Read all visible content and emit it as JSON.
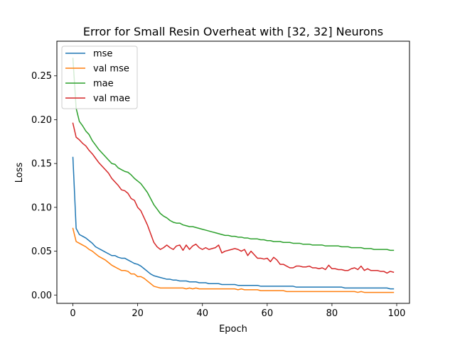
{
  "chart_data": {
    "type": "line",
    "title": "Error for Small Resin Overheat with [32, 32] Neurons",
    "xlabel": "Epoch",
    "ylabel": "Loss",
    "xlim": [
      -4.95,
      103.95
    ],
    "ylim": [
      -0.0095,
      0.2895
    ],
    "xticks": [
      0,
      20,
      40,
      60,
      80,
      100
    ],
    "yticks": [
      0.0,
      0.05,
      0.1,
      0.15,
      0.2,
      0.25
    ],
    "legend_position": "top-left",
    "grid": false,
    "series": [
      {
        "name": "mse",
        "color": "#1f77b4",
        "values": [
          0.157,
          0.076,
          0.069,
          0.067,
          0.065,
          0.062,
          0.059,
          0.055,
          0.053,
          0.051,
          0.049,
          0.047,
          0.045,
          0.045,
          0.043,
          0.042,
          0.042,
          0.04,
          0.038,
          0.036,
          0.035,
          0.033,
          0.03,
          0.027,
          0.024,
          0.022,
          0.021,
          0.02,
          0.019,
          0.018,
          0.018,
          0.017,
          0.017,
          0.016,
          0.016,
          0.016,
          0.015,
          0.015,
          0.015,
          0.014,
          0.014,
          0.014,
          0.013,
          0.013,
          0.013,
          0.013,
          0.012,
          0.012,
          0.012,
          0.012,
          0.012,
          0.011,
          0.011,
          0.011,
          0.011,
          0.011,
          0.011,
          0.011,
          0.01,
          0.01,
          0.01,
          0.01,
          0.01,
          0.01,
          0.01,
          0.01,
          0.01,
          0.01,
          0.01,
          0.009,
          0.009,
          0.009,
          0.009,
          0.009,
          0.009,
          0.009,
          0.009,
          0.009,
          0.009,
          0.009,
          0.009,
          0.009,
          0.009,
          0.009,
          0.008,
          0.008,
          0.008,
          0.008,
          0.008,
          0.008,
          0.008,
          0.008,
          0.008,
          0.008,
          0.008,
          0.008,
          0.008,
          0.008,
          0.007,
          0.007
        ]
      },
      {
        "name": "val mse",
        "color": "#ff7f0e",
        "values": [
          0.076,
          0.061,
          0.059,
          0.057,
          0.055,
          0.052,
          0.05,
          0.047,
          0.044,
          0.042,
          0.04,
          0.037,
          0.034,
          0.032,
          0.03,
          0.028,
          0.028,
          0.027,
          0.024,
          0.024,
          0.021,
          0.021,
          0.019,
          0.016,
          0.013,
          0.01,
          0.009,
          0.008,
          0.008,
          0.008,
          0.008,
          0.008,
          0.008,
          0.008,
          0.008,
          0.007,
          0.008,
          0.007,
          0.008,
          0.007,
          0.007,
          0.007,
          0.007,
          0.007,
          0.007,
          0.007,
          0.007,
          0.007,
          0.007,
          0.007,
          0.007,
          0.006,
          0.007,
          0.006,
          0.006,
          0.006,
          0.006,
          0.006,
          0.005,
          0.005,
          0.005,
          0.005,
          0.005,
          0.005,
          0.005,
          0.005,
          0.004,
          0.004,
          0.004,
          0.004,
          0.004,
          0.004,
          0.004,
          0.004,
          0.004,
          0.004,
          0.004,
          0.004,
          0.004,
          0.004,
          0.004,
          0.004,
          0.004,
          0.004,
          0.004,
          0.004,
          0.004,
          0.004,
          0.003,
          0.004,
          0.003,
          0.003,
          0.003,
          0.003,
          0.003,
          0.003,
          0.003,
          0.003,
          0.003,
          0.003
        ]
      },
      {
        "name": "mae",
        "color": "#2ca02c",
        "values": [
          0.27,
          0.213,
          0.198,
          0.193,
          0.187,
          0.183,
          0.176,
          0.171,
          0.166,
          0.162,
          0.158,
          0.154,
          0.15,
          0.149,
          0.145,
          0.143,
          0.141,
          0.14,
          0.137,
          0.133,
          0.13,
          0.127,
          0.122,
          0.117,
          0.11,
          0.103,
          0.098,
          0.093,
          0.09,
          0.088,
          0.085,
          0.083,
          0.082,
          0.082,
          0.08,
          0.079,
          0.078,
          0.078,
          0.077,
          0.076,
          0.075,
          0.074,
          0.073,
          0.072,
          0.071,
          0.07,
          0.069,
          0.068,
          0.068,
          0.067,
          0.067,
          0.066,
          0.066,
          0.065,
          0.065,
          0.064,
          0.064,
          0.064,
          0.063,
          0.063,
          0.062,
          0.062,
          0.061,
          0.061,
          0.061,
          0.06,
          0.06,
          0.06,
          0.059,
          0.059,
          0.059,
          0.058,
          0.058,
          0.058,
          0.057,
          0.057,
          0.057,
          0.057,
          0.056,
          0.056,
          0.056,
          0.056,
          0.056,
          0.055,
          0.055,
          0.055,
          0.054,
          0.054,
          0.054,
          0.054,
          0.053,
          0.053,
          0.053,
          0.052,
          0.052,
          0.052,
          0.052,
          0.052,
          0.051,
          0.051
        ]
      },
      {
        "name": "val mae",
        "color": "#d62728",
        "values": [
          0.196,
          0.18,
          0.177,
          0.173,
          0.17,
          0.165,
          0.161,
          0.156,
          0.151,
          0.147,
          0.143,
          0.139,
          0.133,
          0.129,
          0.125,
          0.12,
          0.119,
          0.116,
          0.11,
          0.108,
          0.1,
          0.096,
          0.088,
          0.08,
          0.07,
          0.06,
          0.055,
          0.052,
          0.054,
          0.057,
          0.054,
          0.052,
          0.056,
          0.057,
          0.051,
          0.057,
          0.052,
          0.056,
          0.058,
          0.054,
          0.052,
          0.054,
          0.052,
          0.053,
          0.054,
          0.057,
          0.048,
          0.05,
          0.051,
          0.052,
          0.053,
          0.052,
          0.05,
          0.052,
          0.045,
          0.05,
          0.046,
          0.042,
          0.042,
          0.041,
          0.042,
          0.038,
          0.043,
          0.04,
          0.035,
          0.035,
          0.033,
          0.031,
          0.031,
          0.033,
          0.033,
          0.032,
          0.032,
          0.033,
          0.031,
          0.031,
          0.03,
          0.031,
          0.029,
          0.034,
          0.03,
          0.03,
          0.029,
          0.029,
          0.028,
          0.028,
          0.03,
          0.031,
          0.029,
          0.033,
          0.028,
          0.03,
          0.028,
          0.028,
          0.028,
          0.027,
          0.027,
          0.025,
          0.027,
          0.026
        ]
      }
    ]
  }
}
